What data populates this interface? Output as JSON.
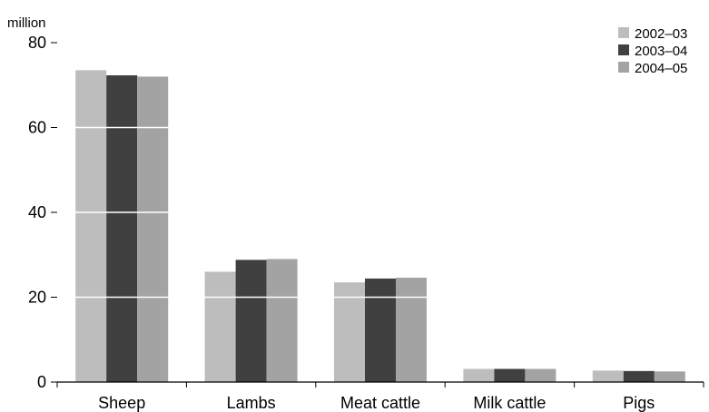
{
  "chart_data": {
    "type": "bar",
    "ylabel": "million",
    "ylim": [
      0,
      80
    ],
    "yticks": [
      0,
      20,
      40,
      60,
      80
    ],
    "gridlines": "white, at 20, 40 and 60",
    "legend_position": "top-right",
    "categories": [
      "Sheep",
      "Lambs",
      "Meat cattle",
      "Milk cattle",
      "Pigs"
    ],
    "series": [
      {
        "name": "2002–03",
        "color": "#bdbdbd",
        "values": [
          73.5,
          26.0,
          23.5,
          3.1,
          2.7
        ]
      },
      {
        "name": "2003–04",
        "color": "#404040",
        "values": [
          72.3,
          28.8,
          24.4,
          3.1,
          2.6
        ]
      },
      {
        "name": "2004–05",
        "color": "#a3a3a3",
        "values": [
          72.0,
          29.0,
          24.6,
          3.1,
          2.5
        ]
      }
    ]
  }
}
